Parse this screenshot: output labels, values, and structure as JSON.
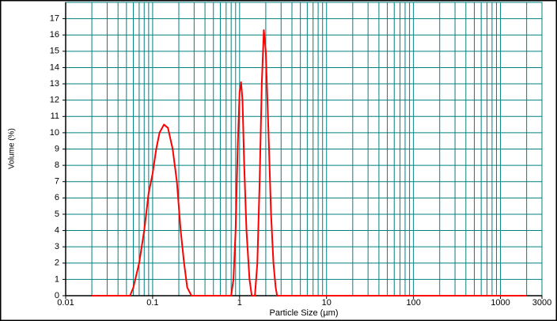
{
  "chart_data": {
    "type": "line",
    "x_label": "Particle Size (µm)",
    "y_label": "Volume (%)",
    "x_scale": "log",
    "grid": true,
    "xlim": [
      0.01,
      3000
    ],
    "ylim": [
      0,
      18
    ],
    "xticks": [
      0.01,
      0.1,
      1,
      10,
      100,
      1000,
      3000
    ],
    "xminorticks": [
      0.02,
      0.03,
      0.04,
      0.05,
      0.06,
      0.07,
      0.08,
      0.09,
      0.2,
      0.3,
      0.4,
      0.5,
      0.6,
      0.7,
      0.8,
      0.9,
      2,
      3,
      4,
      5,
      6,
      7,
      8,
      9,
      20,
      30,
      40,
      50,
      60,
      70,
      80,
      90,
      200,
      300,
      400,
      500,
      600,
      700,
      800,
      900,
      2000
    ],
    "yticks": [
      0,
      1,
      2,
      3,
      4,
      5,
      6,
      7,
      8,
      9,
      10,
      11,
      12,
      13,
      14,
      15,
      16,
      17
    ],
    "grid_color": "#008080",
    "series": [
      {
        "color": "#ff0000",
        "x": [
          0.02,
          0.055,
          0.06,
          0.07,
          0.08,
          0.09,
          0.1,
          0.11,
          0.12,
          0.135,
          0.15,
          0.17,
          0.19,
          0.21,
          0.23,
          0.25,
          0.28,
          0.8,
          0.85,
          0.9,
          0.95,
          1.0,
          1.04,
          1.08,
          1.13,
          1.2,
          1.3,
          1.38,
          1.5,
          1.6,
          1.7,
          1.8,
          1.9,
          2.0,
          2.15,
          2.3,
          2.45,
          2.6,
          2.7,
          2000
        ],
        "values": [
          0,
          0,
          0.5,
          2,
          4,
          6.3,
          7.5,
          9,
          10,
          10.5,
          10.3,
          9,
          7,
          4,
          2,
          0.5,
          0,
          0,
          1,
          4,
          9,
          12.5,
          13.1,
          12,
          8,
          4,
          1,
          0,
          0,
          2,
          7,
          13,
          16.3,
          15,
          10,
          5,
          2,
          0.5,
          0,
          0
        ]
      }
    ]
  }
}
